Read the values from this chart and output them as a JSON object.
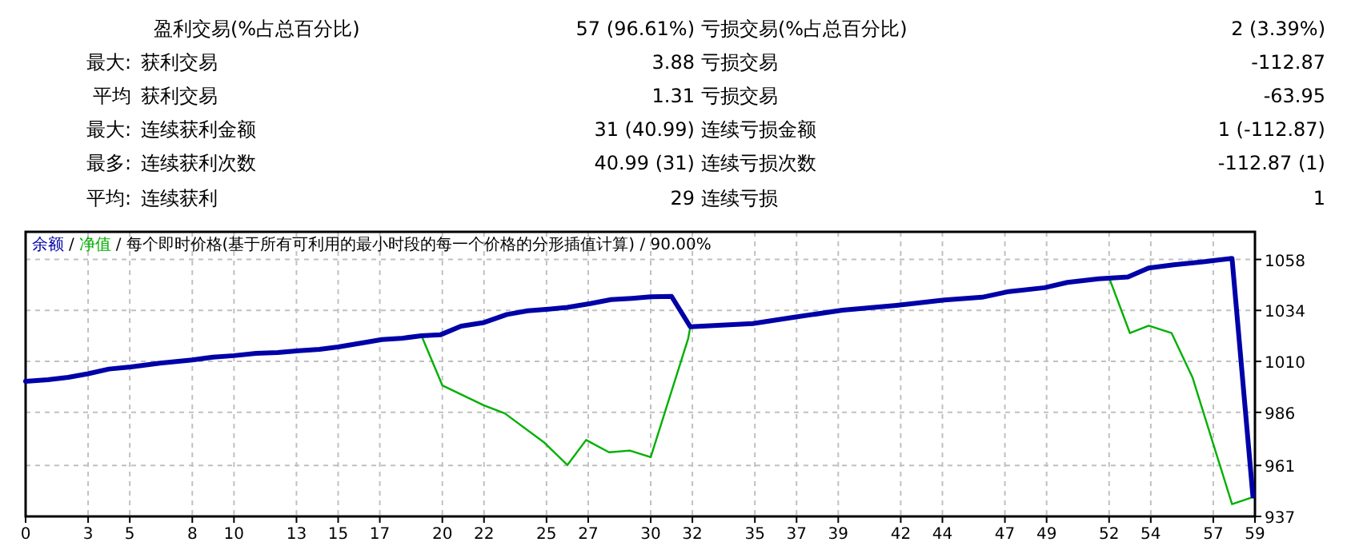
{
  "chart_data": [
    {
      "type": "other",
      "annotations": [
        "盈利交易(%占总百分比)",
        "57 (96.61%)",
        "亏损交易(%占总百分比)",
        "2 (3.39%)",
        "最大:",
        "获利交易",
        "3.88",
        "亏损交易",
        "-112.87",
        "平均",
        "获利交易",
        "1.31",
        "亏损交易",
        "-63.95",
        "最大:",
        "连续获利金额",
        "31 (40.99)",
        "连续亏损金额",
        "1 (-112.87)",
        "最多:",
        "连续获利次数",
        "40.99 (31)",
        "连续亏损次数",
        "-112.87 (1)",
        "平均:",
        "连续获利",
        "29",
        "连续亏损",
        "1"
      ]
    },
    {
      "type": "line",
      "subtitle": "每个即时价格(基于所有可利用的最小时段的每一个价格的分形插值计算) / 90.00%",
      "grid": true,
      "legend": "top left",
      "xlim": [
        0,
        59
      ],
      "ylim": [
        937,
        1071
      ],
      "annotations": [
        "/"
      ],
      "xticks": [
        0,
        3,
        5,
        8,
        10,
        13,
        15,
        17,
        20,
        22,
        25,
        27,
        30,
        32,
        35,
        37,
        39,
        42,
        44,
        47,
        49,
        52,
        54,
        57,
        59
      ],
      "yticks": [
        937,
        961,
        986,
        1010,
        1034,
        1058
      ],
      "series": [
        {
          "name": "净值",
          "color": "#00b000",
          "x": [
            19.0,
            20.0,
            22.0,
            23.0,
            24.9,
            26.0,
            26.9,
            28.0,
            29.0,
            30.0,
            31.8,
            31.9
          ],
          "values": [
            1022.1,
            998.7,
            989.3,
            985.5,
            971.7,
            961.2,
            973,
            967.2,
            968,
            964.9,
            1020.8,
            1026.3
          ]
        },
        {
          "color": "#00b000",
          "x": [
            52.0,
            53.0,
            53.9,
            55.0,
            56.0,
            57.9,
            58.9
          ],
          "values": [
            1049.4,
            1023.3,
            1026.8,
            1023.3,
            1002.5,
            942.8,
            946.1
          ]
        },
        {
          "name": "余额",
          "color": "#0000a8",
          "x": [
            0,
            1.07,
            2.05,
            3.0,
            4.0,
            5.05,
            6.45,
            8.0,
            9.0,
            10.0,
            11.06,
            12.1,
            13.1,
            14.1,
            15.0,
            16.2,
            17.1,
            18.0,
            19.0,
            19.9,
            20.9,
            22.0,
            23.1,
            24.1,
            25.1,
            26.0,
            27.1,
            28.1,
            29.1,
            30.0,
            31.0,
            31.9,
            34.9,
            36.9,
            39.2,
            41.8,
            44.1,
            45.9,
            47.2,
            48.9,
            50.0,
            51.5,
            52.9,
            53.9,
            55.1,
            56.6,
            57.9,
            58.9
          ],
          "values": [
            1000.6,
            1001.4,
            1002.5,
            1004.2,
            1006.4,
            1007.4,
            1009.2,
            1010.7,
            1012,
            1012.7,
            1013.8,
            1014.2,
            1015,
            1015.7,
            1016.8,
            1018.8,
            1020.3,
            1020.8,
            1022.1,
            1022.5,
            1026.6,
            1028.3,
            1032.1,
            1033.8,
            1034.6,
            1035.4,
            1037.2,
            1039.1,
            1039.7,
            1040.4,
            1040.6,
            1026.3,
            1027.8,
            1030.8,
            1034.1,
            1036.4,
            1038.9,
            1040.2,
            1042.9,
            1044.7,
            1047.2,
            1048.9,
            1049.7,
            1054,
            1055.5,
            1057,
            1058.5,
            946.6
          ]
        }
      ]
    }
  ]
}
